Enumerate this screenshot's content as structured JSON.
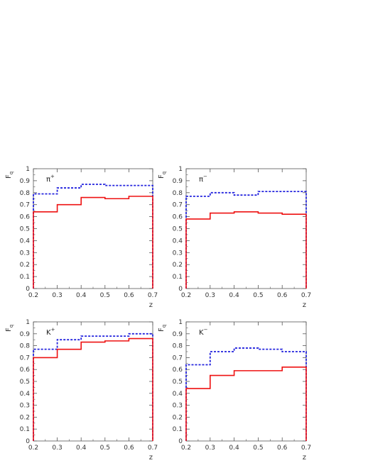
{
  "chart_data": [
    {
      "type": "line",
      "panel_label": "π+",
      "panel_label_base": "π",
      "panel_label_sup": "+",
      "xlabel": "z",
      "ylabel": "F_q",
      "ylabel_base": "F",
      "ylabel_sub": "q",
      "xlim": [
        0.2,
        0.7
      ],
      "ylim": [
        0,
        1
      ],
      "x_edges": [
        0.2,
        0.3,
        0.4,
        0.5,
        0.6,
        0.7
      ],
      "x_ticks": [
        "0.2",
        "0.3",
        "0.4",
        "0.5",
        "0.6",
        "0.7"
      ],
      "y_ticks": [
        "0",
        "0.1",
        "0.2",
        "0.3",
        "0.4",
        "0.5",
        "0.6",
        "0.7",
        "0.8",
        "0.9",
        "1"
      ],
      "series": [
        {
          "style": "dashed",
          "color": "#2222dd",
          "values": [
            0.79,
            0.84,
            0.87,
            0.86,
            0.86
          ]
        },
        {
          "style": "solid",
          "color": "#ee1111",
          "values": [
            0.64,
            0.7,
            0.76,
            0.75,
            0.77
          ]
        }
      ]
    },
    {
      "type": "line",
      "panel_label": "π−",
      "panel_label_base": "π",
      "panel_label_sup": "−",
      "xlabel": "z",
      "ylabel": "F_q",
      "ylabel_base": "F",
      "ylabel_sub": "q",
      "xlim": [
        0.2,
        0.7
      ],
      "ylim": [
        0,
        1
      ],
      "x_edges": [
        0.2,
        0.3,
        0.4,
        0.5,
        0.6,
        0.7
      ],
      "x_ticks": [
        "0.2",
        "0.3",
        "0.4",
        "0.5",
        "0.6",
        "0.7"
      ],
      "y_ticks": [
        "0",
        "0.1",
        "0.2",
        "0.3",
        "0.4",
        "0.5",
        "0.6",
        "0.7",
        "0.8",
        "0.9",
        "1"
      ],
      "series": [
        {
          "style": "dashed",
          "color": "#2222dd",
          "values": [
            0.77,
            0.8,
            0.78,
            0.81,
            0.81
          ]
        },
        {
          "style": "solid",
          "color": "#ee1111",
          "values": [
            0.58,
            0.63,
            0.64,
            0.63,
            0.62
          ]
        }
      ]
    },
    {
      "type": "line",
      "panel_label": "K+",
      "panel_label_base": "K",
      "panel_label_sup": "+",
      "xlabel": "z",
      "ylabel": "F_q",
      "ylabel_base": "F",
      "ylabel_sub": "q",
      "xlim": [
        0.2,
        0.7
      ],
      "ylim": [
        0,
        1
      ],
      "x_edges": [
        0.2,
        0.3,
        0.4,
        0.5,
        0.6,
        0.7
      ],
      "x_ticks": [
        "0.2",
        "0.3",
        "0.4",
        "0.5",
        "0.6",
        "0.7"
      ],
      "y_ticks": [
        "0",
        "0.1",
        "0.2",
        "0.3",
        "0.4",
        "0.5",
        "0.6",
        "0.7",
        "0.8",
        "0.9",
        "1"
      ],
      "series": [
        {
          "style": "dashed",
          "color": "#2222dd",
          "values": [
            0.77,
            0.85,
            0.88,
            0.88,
            0.9
          ]
        },
        {
          "style": "solid",
          "color": "#ee1111",
          "values": [
            0.7,
            0.77,
            0.83,
            0.84,
            0.86
          ]
        }
      ]
    },
    {
      "type": "line",
      "panel_label": "K−",
      "panel_label_base": "K",
      "panel_label_sup": "−",
      "xlabel": "z",
      "ylabel": "F_q",
      "ylabel_base": "F",
      "ylabel_sub": "q",
      "xlim": [
        0.2,
        0.7
      ],
      "ylim": [
        0,
        1
      ],
      "x_edges": [
        0.2,
        0.3,
        0.4,
        0.5,
        0.6,
        0.7
      ],
      "x_ticks": [
        "0.2",
        "0.3",
        "0.4",
        "0.5",
        "0.6",
        "0.7"
      ],
      "y_ticks": [
        "0",
        "0.1",
        "0.2",
        "0.3",
        "0.4",
        "0.5",
        "0.6",
        "0.7",
        "0.8",
        "0.9",
        "1"
      ],
      "series": [
        {
          "style": "dashed",
          "color": "#2222dd",
          "values": [
            0.64,
            0.75,
            0.78,
            0.77,
            0.75
          ]
        },
        {
          "style": "solid",
          "color": "#ee1111",
          "values": [
            0.44,
            0.55,
            0.59,
            0.59,
            0.62
          ]
        }
      ]
    }
  ]
}
